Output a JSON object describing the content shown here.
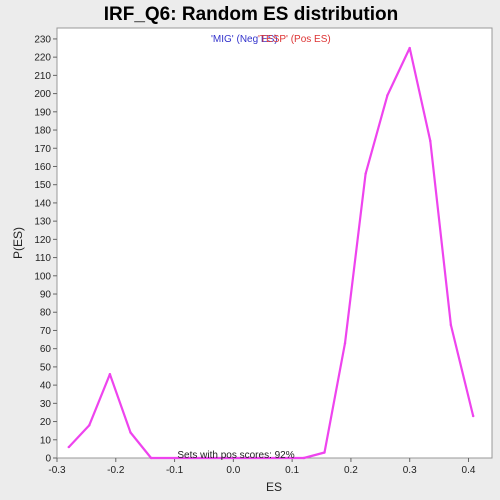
{
  "chart_data": {
    "type": "line",
    "title": "IRF_Q6: Random ES distribution",
    "xlabel": "ES",
    "ylabel": "P(ES)",
    "xlim": [
      -0.3,
      0.44
    ],
    "ylim": [
      0,
      236
    ],
    "x_ticks": [
      -0.3,
      -0.2,
      -0.1,
      0.0,
      0.1,
      0.2,
      0.3,
      0.4
    ],
    "x_tick_labels": [
      "-0.3",
      "-0.2",
      "-0.1",
      "0.0",
      "0.1",
      "0.2",
      "0.3",
      "0.4"
    ],
    "y_ticks": [
      0,
      10,
      20,
      30,
      40,
      50,
      60,
      70,
      80,
      90,
      100,
      110,
      120,
      130,
      140,
      150,
      160,
      170,
      180,
      190,
      200,
      210,
      220,
      230
    ],
    "grid": false,
    "legend": [
      {
        "text": "'MIG' (Neg ES)",
        "color": "#3333cc"
      },
      {
        "text": "'TESP' (Pos ES)",
        "color": "#dd3333"
      }
    ],
    "annotation": "Sets with pos scores: 92%",
    "series": [
      {
        "color": "#ee44ee",
        "x": [
          -0.28,
          -0.245,
          -0.21,
          -0.175,
          -0.14,
          0.12,
          0.155,
          0.19,
          0.225,
          0.262,
          0.3,
          0.335,
          0.37,
          0.408
        ],
        "y": [
          6,
          18,
          46,
          14,
          0,
          0,
          3,
          63,
          156,
          199,
          225,
          174,
          73,
          23
        ]
      }
    ]
  }
}
